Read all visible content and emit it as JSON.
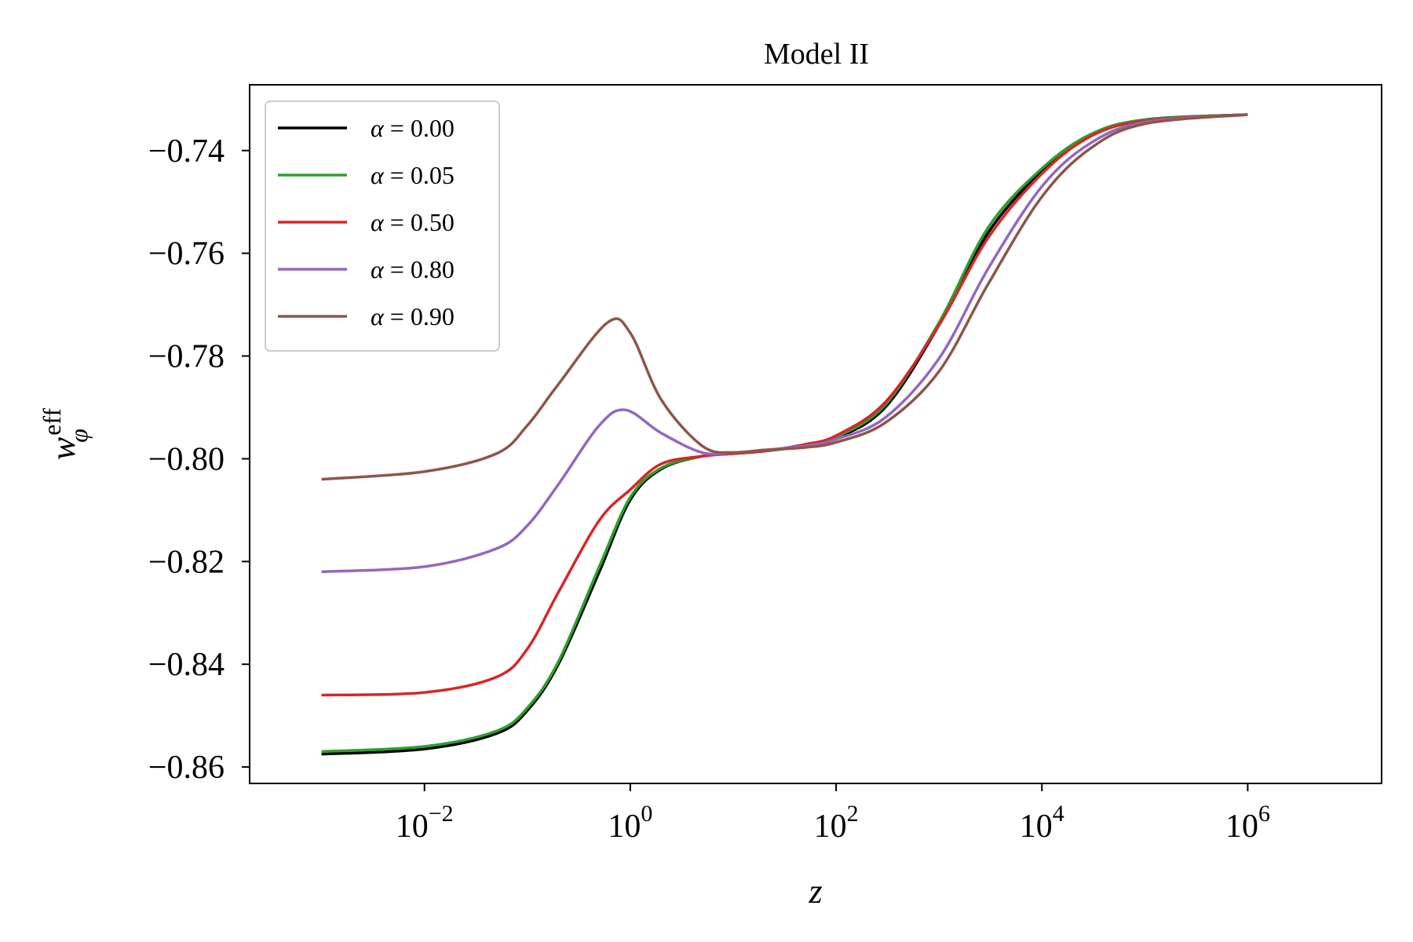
{
  "chart_data": {
    "type": "line",
    "title": "Model II",
    "xlabel": "z",
    "ylabel_base": "w",
    "ylabel_sup": "eff",
    "ylabel_sub": "φ",
    "xscale": "log",
    "xlim": [
      0.0002,
      20000000.0
    ],
    "ylim": [
      -0.8632,
      -0.7272
    ],
    "grid": false,
    "legend_position": "upper-left",
    "x_ticks": [
      {
        "value": 0.01,
        "base": "10",
        "exp": "−2"
      },
      {
        "value": 1,
        "base": "10",
        "exp": "0"
      },
      {
        "value": 100,
        "base": "10",
        "exp": "2"
      },
      {
        "value": 10000,
        "base": "10",
        "exp": "4"
      },
      {
        "value": 1000000,
        "base": "10",
        "exp": "6"
      }
    ],
    "y_ticks": [
      {
        "value": -0.74,
        "label": "−0.74"
      },
      {
        "value": -0.76,
        "label": "−0.76"
      },
      {
        "value": -0.78,
        "label": "−0.78"
      },
      {
        "value": -0.8,
        "label": "−0.80"
      },
      {
        "value": -0.82,
        "label": "−0.82"
      },
      {
        "value": -0.84,
        "label": "−0.84"
      },
      {
        "value": -0.86,
        "label": "−0.86"
      }
    ],
    "series": [
      {
        "name": "α = 0.00",
        "symbol": "α",
        "value_label": " = 0.00",
        "color": "#000000",
        "x": [
          0.001,
          0.01,
          0.05,
          0.1,
          0.2,
          0.5,
          1,
          2,
          5,
          10,
          20,
          50,
          100,
          300,
          1000,
          3000,
          10000,
          30000,
          100000,
          1000000
        ],
        "values": [
          -0.8575,
          -0.8565,
          -0.8535,
          -0.849,
          -0.84,
          -0.822,
          -0.808,
          -0.802,
          -0.7995,
          -0.799,
          -0.7985,
          -0.7975,
          -0.796,
          -0.79,
          -0.774,
          -0.756,
          -0.744,
          -0.737,
          -0.734,
          -0.733
        ]
      },
      {
        "name": "α = 0.05",
        "symbol": "α",
        "value_label": " = 0.05",
        "color": "#2ca02c",
        "x": [
          0.001,
          0.01,
          0.05,
          0.1,
          0.2,
          0.5,
          1,
          2,
          5,
          10,
          20,
          50,
          100,
          300,
          1000,
          3000,
          10000,
          30000,
          100000,
          1000000
        ],
        "values": [
          -0.857,
          -0.856,
          -0.853,
          -0.8485,
          -0.8395,
          -0.821,
          -0.8075,
          -0.8018,
          -0.7995,
          -0.799,
          -0.7985,
          -0.7975,
          -0.7958,
          -0.7895,
          -0.7735,
          -0.755,
          -0.7435,
          -0.7368,
          -0.734,
          -0.733
        ]
      },
      {
        "name": "α = 0.50",
        "symbol": "α",
        "value_label": " = 0.50",
        "color": "#d62728",
        "x": [
          0.001,
          0.01,
          0.05,
          0.1,
          0.2,
          0.5,
          1,
          2,
          5,
          10,
          20,
          50,
          100,
          300,
          1000,
          3000,
          10000,
          30000,
          100000,
          1000000
        ],
        "values": [
          -0.846,
          -0.8455,
          -0.8425,
          -0.837,
          -0.826,
          -0.812,
          -0.806,
          -0.801,
          -0.7995,
          -0.799,
          -0.7985,
          -0.7972,
          -0.7955,
          -0.789,
          -0.774,
          -0.757,
          -0.7445,
          -0.7372,
          -0.7342,
          -0.733
        ]
      },
      {
        "name": "α = 0.80",
        "symbol": "α",
        "value_label": " = 0.80",
        "color": "#9467bd",
        "x": [
          0.001,
          0.01,
          0.05,
          0.1,
          0.2,
          0.5,
          0.9,
          2,
          5,
          10,
          20,
          50,
          100,
          300,
          1000,
          3000,
          10000,
          30000,
          100000,
          1000000
        ],
        "values": [
          -0.822,
          -0.821,
          -0.8175,
          -0.813,
          -0.805,
          -0.7935,
          -0.7905,
          -0.795,
          -0.7988,
          -0.7988,
          -0.7983,
          -0.7975,
          -0.7962,
          -0.792,
          -0.7805,
          -0.763,
          -0.747,
          -0.7385,
          -0.7345,
          -0.733
        ]
      },
      {
        "name": "α = 0.90",
        "symbol": "α",
        "value_label": " = 0.90",
        "color": "#8c564b",
        "x": [
          0.001,
          0.01,
          0.05,
          0.1,
          0.2,
          0.6,
          1,
          2,
          5,
          10,
          20,
          50,
          100,
          300,
          1000,
          3000,
          10000,
          30000,
          100000,
          1000000
        ],
        "values": [
          -0.804,
          -0.8025,
          -0.799,
          -0.7935,
          -0.7855,
          -0.7735,
          -0.7755,
          -0.7885,
          -0.7975,
          -0.7988,
          -0.7983,
          -0.7978,
          -0.7968,
          -0.793,
          -0.783,
          -0.766,
          -0.749,
          -0.7395,
          -0.7348,
          -0.733
        ]
      }
    ]
  }
}
